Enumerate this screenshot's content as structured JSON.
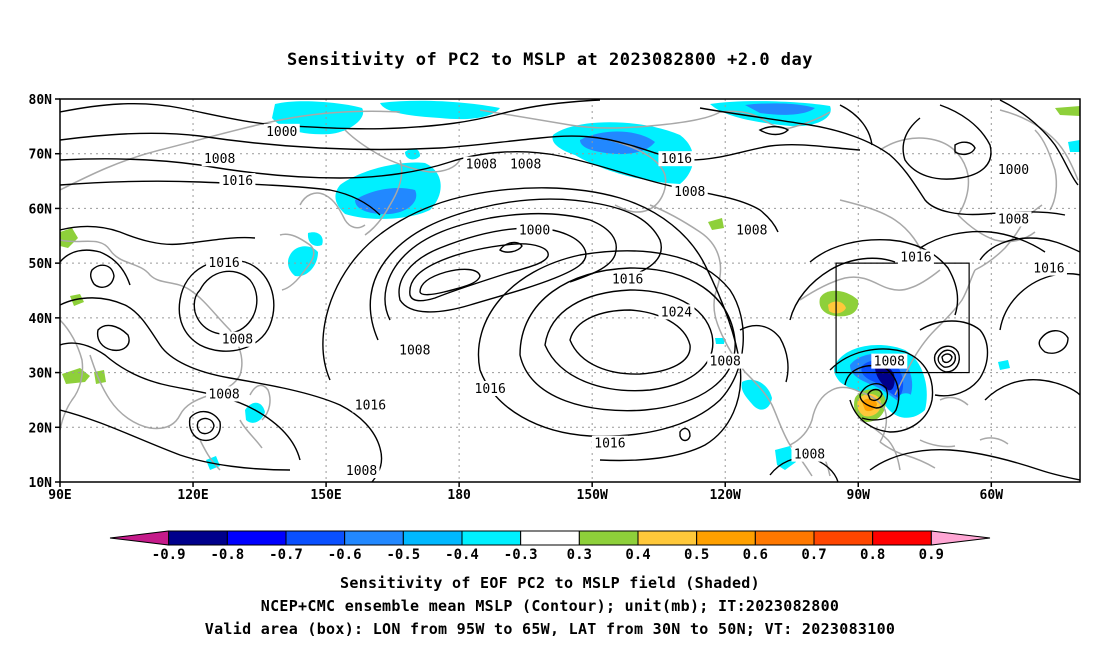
{
  "title": "Sensitivity of PC2 to MSLP at 2023082800 +2.0 day",
  "captions": [
    "Sensitivity of EOF PC2 to MSLP field (Shaded)",
    "NCEP+CMC ensemble mean MSLP (Contour); unit(mb); IT:2023082800",
    "Valid area (box): LON from 95W to 65W, LAT from 30N to 50N; VT: 2023083100"
  ],
  "map": {
    "lon_range": [
      90,
      320
    ],
    "lat_range": [
      10,
      80
    ],
    "lat_ticks": [
      {
        "value": 80,
        "label": "80N"
      },
      {
        "value": 70,
        "label": "70N"
      },
      {
        "value": 60,
        "label": "60N"
      },
      {
        "value": 50,
        "label": "50N"
      },
      {
        "value": 40,
        "label": "40N"
      },
      {
        "value": 30,
        "label": "30N"
      },
      {
        "value": 20,
        "label": "20N"
      },
      {
        "value": 10,
        "label": "10N"
      }
    ],
    "lon_ticks": [
      {
        "value": 90,
        "label": "90E"
      },
      {
        "value": 120,
        "label": "120E"
      },
      {
        "value": 150,
        "label": "150E"
      },
      {
        "value": 180,
        "label": "180"
      },
      {
        "value": 210,
        "label": "150W"
      },
      {
        "value": 240,
        "label": "120W"
      },
      {
        "value": 270,
        "label": "90W"
      },
      {
        "value": 300,
        "label": "60W"
      }
    ],
    "valid_box": {
      "lon": [
        265,
        295
      ],
      "lat": [
        30,
        50
      ]
    },
    "colors": {
      "coast": "#a8a8a8",
      "contour": "#000000",
      "grid": "#999999",
      "box": "#000000"
    },
    "contour_labels": [
      {
        "lon": 140,
        "lat": 74,
        "text": "1000"
      },
      {
        "lon": 126,
        "lat": 69,
        "text": "1008"
      },
      {
        "lon": 130,
        "lat": 65,
        "text": "1016"
      },
      {
        "lon": 185,
        "lat": 68,
        "text": "1008"
      },
      {
        "lon": 195,
        "lat": 68,
        "text": "1008"
      },
      {
        "lon": 229,
        "lat": 69,
        "text": "1016"
      },
      {
        "lon": 232,
        "lat": 63,
        "text": "1008"
      },
      {
        "lon": 246,
        "lat": 56,
        "text": "1008"
      },
      {
        "lon": 305,
        "lat": 67,
        "text": "1000"
      },
      {
        "lon": 305,
        "lat": 58,
        "text": "1008"
      },
      {
        "lon": 283,
        "lat": 51,
        "text": "1016"
      },
      {
        "lon": 313,
        "lat": 49,
        "text": "1016"
      },
      {
        "lon": 197,
        "lat": 56,
        "text": "1000"
      },
      {
        "lon": 218,
        "lat": 47,
        "text": "1016"
      },
      {
        "lon": 229,
        "lat": 41,
        "text": "1024"
      },
      {
        "lon": 127,
        "lat": 50,
        "text": "1016"
      },
      {
        "lon": 130,
        "lat": 36,
        "text": "1008"
      },
      {
        "lon": 170,
        "lat": 34,
        "text": "1008"
      },
      {
        "lon": 127,
        "lat": 26,
        "text": "1008"
      },
      {
        "lon": 160,
        "lat": 24,
        "text": "1016"
      },
      {
        "lon": 187,
        "lat": 27,
        "text": "1016"
      },
      {
        "lon": 214,
        "lat": 17,
        "text": "1016"
      },
      {
        "lon": 240,
        "lat": 32,
        "text": "1008"
      },
      {
        "lon": 158,
        "lat": 12,
        "text": "1008"
      },
      {
        "lon": 259,
        "lat": 15,
        "text": "1008"
      },
      {
        "lon": 277,
        "lat": 32,
        "text": "1008"
      }
    ]
  },
  "colorbar": {
    "segments": [
      {
        "color": "#c51b8a"
      },
      {
        "color": "#00008b"
      },
      {
        "color": "#0000ff"
      },
      {
        "color": "#0a50ff"
      },
      {
        "color": "#2288ff"
      },
      {
        "color": "#00b8ff"
      },
      {
        "color": "#00f0ff"
      },
      {
        "color": "#ffffff"
      },
      {
        "color": "#8ed03a"
      },
      {
        "color": "#ffc83a"
      },
      {
        "color": "#ffa000"
      },
      {
        "color": "#ff7800"
      },
      {
        "color": "#ff4600"
      },
      {
        "color": "#ff0000"
      },
      {
        "color": "#ffa6d4"
      }
    ],
    "labels": [
      "-0.9",
      "-0.8",
      "-0.7",
      "-0.6",
      "-0.5",
      "-0.4",
      "-0.3",
      "0.3",
      "0.4",
      "0.5",
      "0.6",
      "0.7",
      "0.8",
      "0.9"
    ]
  }
}
